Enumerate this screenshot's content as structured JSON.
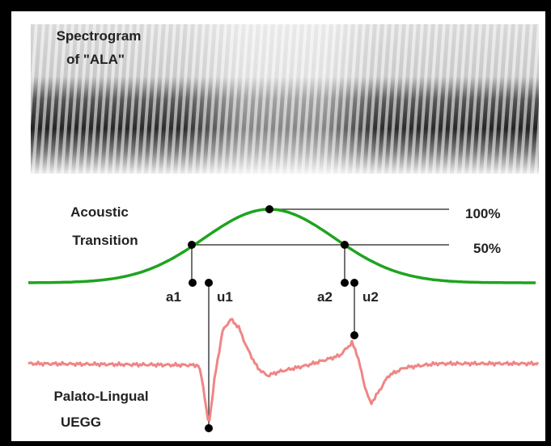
{
  "spectrogram": {
    "label": [
      "Spectrogram",
      "of \"ALA\""
    ]
  },
  "acoustic": {
    "label": [
      "Acoustic",
      "Transition"
    ],
    "levels": [
      "100%",
      "50%"
    ]
  },
  "markers": [
    "a1",
    "u1",
    "a2",
    "u2"
  ],
  "uegg": {
    "label": [
      "Palato-Lingual",
      "UEGG"
    ]
  }
}
